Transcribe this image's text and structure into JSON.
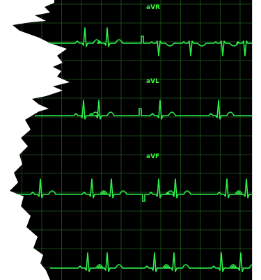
{
  "ecg": {
    "leads": [
      {
        "id": "avr",
        "label": "aVR"
      },
      {
        "id": "avl",
        "label": "aVL"
      },
      {
        "id": "avf",
        "label": "aVF"
      },
      {
        "id": "rhythm",
        "label": ""
      }
    ],
    "colors": {
      "background": "#000000",
      "grid": "#1f5a1f",
      "trace": "#2ef04a",
      "label": "#39ff3a",
      "page": "#ffffff",
      "border": "#d9d9d9"
    }
  }
}
